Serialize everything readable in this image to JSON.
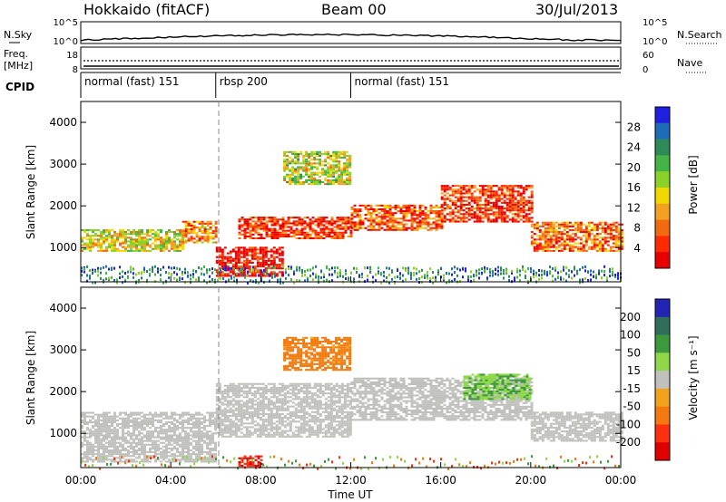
{
  "header": {
    "station": "Hokkaido (fitACF)",
    "beam": "Beam 00",
    "date": "30/Jul/2013"
  },
  "noise_panel": {
    "left_label": "N.Sky",
    "right_label": "N.Search",
    "ticks_left": [
      "10^5",
      "10^0"
    ],
    "ticks_right": [
      "10^5",
      "10^0"
    ]
  },
  "freq_panel": {
    "left_label_1": "Freq.",
    "left_label_2": "[MHz]",
    "right_label": "Nave",
    "ticks_left": [
      "18",
      "8"
    ],
    "ticks_right": [
      "60",
      "0"
    ]
  },
  "cpid_panel": {
    "label": "CPID",
    "segments": [
      {
        "name": "normal (fast) 151",
        "start_h": 0,
        "end_h": 6
      },
      {
        "name": "rbsp 200",
        "start_h": 6,
        "end_h": 12
      },
      {
        "name": "normal (fast) 151",
        "start_h": 12,
        "end_h": 24
      }
    ]
  },
  "x_axis": {
    "label": "Time UT",
    "ticks": [
      "00:00",
      "04:00",
      "08:00",
      "12:00",
      "16:00",
      "20:00",
      "00:00"
    ]
  },
  "power_panel": {
    "ylabel": "Slant Range [km]",
    "yticks": [
      "4000",
      "3000",
      "2000",
      "1000"
    ],
    "colorbar_label": "Power [dB]",
    "colorbar_ticks": [
      "28",
      "24",
      "20",
      "16",
      "12",
      "8",
      "4"
    ],
    "colors": [
      "#2020e0",
      "#1e6cb8",
      "#2e8b57",
      "#44b444",
      "#8ad22a",
      "#f0d800",
      "#f4a020",
      "#f26a10",
      "#ff2a00",
      "#e80000"
    ]
  },
  "velocity_panel": {
    "ylabel": "Slant Range [km]",
    "yticks": [
      "4000",
      "3000",
      "2000",
      "1000"
    ],
    "colorbar_label": "Velocity [m s⁻¹]",
    "colorbar_ticks": [
      "200",
      "100",
      "50",
      "15",
      "-15",
      "-50",
      "-100",
      "-200"
    ],
    "colors": [
      "#2323b4",
      "#2e6e5a",
      "#3c9a3c",
      "#8fd84a",
      "#c0c0bc",
      "#f2a31c",
      "#f47a10",
      "#ff3010",
      "#e00000"
    ]
  },
  "chart_data": {
    "type": "heatmap",
    "x_range_hours": [
      0,
      24
    ],
    "y_range_km": [
      180,
      4500
    ],
    "power_bands": [
      {
        "start_h": 0.0,
        "end_h": 4.5,
        "low_km": 900,
        "high_km": 1400,
        "level": 0.55
      },
      {
        "start_h": 4.5,
        "end_h": 6.0,
        "low_km": 1100,
        "high_km": 1600,
        "level": 0.7
      },
      {
        "start_h": 6.0,
        "end_h": 9.0,
        "low_km": 300,
        "high_km": 1000,
        "level": 0.95
      },
      {
        "start_h": 7.0,
        "end_h": 12.0,
        "low_km": 1200,
        "high_km": 1700,
        "level": 0.85
      },
      {
        "start_h": 9.0,
        "end_h": 12.0,
        "low_km": 2500,
        "high_km": 3300,
        "level": 0.5
      },
      {
        "start_h": 12.0,
        "end_h": 16.0,
        "low_km": 1400,
        "high_km": 2000,
        "level": 0.8
      },
      {
        "start_h": 16.0,
        "end_h": 20.0,
        "low_km": 1600,
        "high_km": 2500,
        "level": 0.85
      },
      {
        "start_h": 20.0,
        "end_h": 24.0,
        "low_km": 900,
        "high_km": 1600,
        "level": 0.75
      }
    ],
    "velocity_bands": [
      {
        "start_h": 0.0,
        "end_h": 6.0,
        "low_km": 300,
        "high_km": 1500,
        "value": 0
      },
      {
        "start_h": 6.0,
        "end_h": 12.0,
        "low_km": 900,
        "high_km": 2200,
        "value": 0
      },
      {
        "start_h": 9.0,
        "end_h": 12.0,
        "low_km": 2500,
        "high_km": 3300,
        "value": -40
      },
      {
        "start_h": 12.0,
        "end_h": 20.0,
        "low_km": 1300,
        "high_km": 2300,
        "value": 0
      },
      {
        "start_h": 17.0,
        "end_h": 20.0,
        "low_km": 1800,
        "high_km": 2400,
        "value": 30
      },
      {
        "start_h": 20.0,
        "end_h": 24.0,
        "low_km": 800,
        "high_km": 1500,
        "value": 0
      },
      {
        "start_h": 7.0,
        "end_h": 8.0,
        "low_km": 200,
        "high_km": 450,
        "value": -150
      }
    ]
  }
}
